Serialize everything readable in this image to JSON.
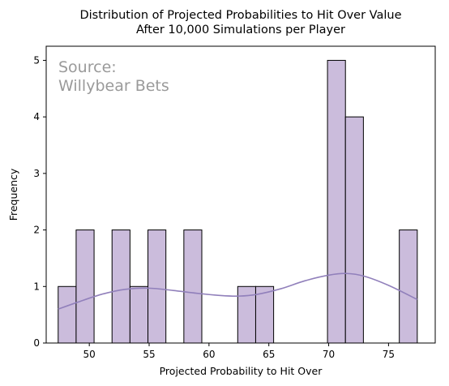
{
  "chart_data": {
    "type": "bar",
    "title": "Distribution of Projected Probabilities to Hit Over Value\nAfter 10,000 Simulations per Player",
    "xlabel": "Projected Probability to Hit Over",
    "ylabel": "Frequency",
    "annotation": "Source:\nWillybear Bets",
    "xlim": [
      46.4,
      78.9
    ],
    "ylim": [
      0,
      5.25
    ],
    "xticks": [
      50,
      55,
      60,
      65,
      70,
      75
    ],
    "yticks": [
      0,
      1,
      2,
      3,
      4,
      5
    ],
    "grid": false,
    "bar_color": "#cbbcdc",
    "kde_color": "#9180bb",
    "bins": [
      {
        "x0": 47.4,
        "x1": 48.9,
        "count": 1
      },
      {
        "x0": 48.9,
        "x1": 50.4,
        "count": 2
      },
      {
        "x0": 50.4,
        "x1": 51.9,
        "count": 0
      },
      {
        "x0": 51.9,
        "x1": 53.4,
        "count": 2
      },
      {
        "x0": 53.4,
        "x1": 54.9,
        "count": 1
      },
      {
        "x0": 54.9,
        "x1": 56.4,
        "count": 2
      },
      {
        "x0": 56.4,
        "x1": 57.9,
        "count": 0
      },
      {
        "x0": 57.9,
        "x1": 59.4,
        "count": 2
      },
      {
        "x0": 59.4,
        "x1": 60.9,
        "count": 0
      },
      {
        "x0": 60.9,
        "x1": 62.4,
        "count": 0
      },
      {
        "x0": 62.4,
        "x1": 63.9,
        "count": 1
      },
      {
        "x0": 63.9,
        "x1": 65.4,
        "count": 1
      },
      {
        "x0": 65.4,
        "x1": 66.9,
        "count": 0
      },
      {
        "x0": 66.9,
        "x1": 68.4,
        "count": 0
      },
      {
        "x0": 68.4,
        "x1": 69.9,
        "count": 0
      },
      {
        "x0": 69.9,
        "x1": 71.4,
        "count": 5
      },
      {
        "x0": 71.4,
        "x1": 72.9,
        "count": 4
      },
      {
        "x0": 72.9,
        "x1": 74.4,
        "count": 0
      },
      {
        "x0": 74.4,
        "x1": 75.9,
        "count": 0
      },
      {
        "x0": 75.9,
        "x1": 77.4,
        "count": 2
      }
    ],
    "kde": {
      "x": [
        47.4,
        49,
        51,
        53,
        55,
        57,
        59,
        61,
        62.5,
        64,
        66,
        68,
        70,
        71.5,
        73,
        75,
        77.4
      ],
      "y": [
        0.6,
        0.72,
        0.86,
        0.95,
        0.97,
        0.93,
        0.88,
        0.84,
        0.83,
        0.86,
        0.96,
        1.1,
        1.2,
        1.23,
        1.18,
        1.02,
        0.77
      ]
    }
  }
}
